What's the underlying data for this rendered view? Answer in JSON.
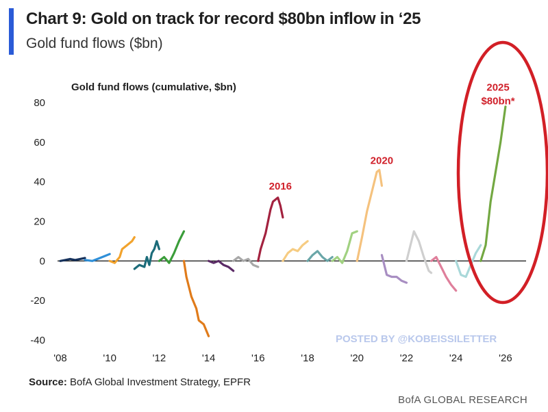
{
  "header": {
    "title": "Chart 9: Gold on track for record $80bn inflow in ‘25",
    "subtitle": "Gold fund flows ($bn)"
  },
  "footer": {
    "source_label": "Source:",
    "source_text": "BofA Global Investment Strategy, EPFR",
    "brand": "BofA GLOBAL RESEARCH"
  },
  "watermark": "POSTED BY @KOBEISSILETTER",
  "colors": {
    "accent": "#2a5bd7",
    "annotation": "#d0202a",
    "highlight_ellipse": "#d21f26"
  },
  "chart_data": {
    "type": "line",
    "title": "Gold fund flows (cumulative, $bn)",
    "xlabel": "",
    "ylabel": "",
    "xlim": [
      2008,
      2027
    ],
    "ylim": [
      -40,
      80
    ],
    "x_ticks": [
      "'08",
      "'10",
      "'12",
      "'14",
      "'16",
      "'18",
      "'20",
      "'22",
      "'24",
      "'26"
    ],
    "y_ticks": [
      80,
      60,
      40,
      20,
      0,
      -20,
      -40
    ],
    "grid": false,
    "legend": "none",
    "annotations": [
      {
        "lines": [
          "2016"
        ],
        "x": 2016.9,
        "y": 36
      },
      {
        "lines": [
          "2020"
        ],
        "x": 2021.0,
        "y": 49
      },
      {
        "lines": [
          "2025",
          "$80bn*"
        ],
        "x": 2025.7,
        "y": 86
      }
    ],
    "highlight": {
      "shape": "ellipse",
      "around": "2025",
      "color": "#d21f26"
    },
    "series": [
      {
        "year": 2008,
        "color": "#16325c",
        "x": [
          2008.0,
          2008.2,
          2008.4,
          2008.6,
          2008.8,
          2009.0
        ],
        "y": [
          0,
          0.5,
          1,
          0.5,
          1,
          1.5
        ]
      },
      {
        "year": 2009,
        "color": "#2f8fd8",
        "x": [
          2009.0,
          2009.3,
          2009.6,
          2009.8,
          2010.0
        ],
        "y": [
          0.5,
          0,
          1.5,
          2.5,
          3.5
        ]
      },
      {
        "year": 2010,
        "color": "#f2a32d",
        "x": [
          2010.0,
          2010.2,
          2010.4,
          2010.5,
          2010.7,
          2010.9,
          2011.0
        ],
        "y": [
          0,
          -1,
          2,
          6,
          8,
          10,
          12
        ]
      },
      {
        "year": 2011,
        "color": "#1c6c7a",
        "x": [
          2011.0,
          2011.2,
          2011.4,
          2011.5,
          2011.6,
          2011.7,
          2011.8,
          2011.9,
          2012.0
        ],
        "y": [
          -4,
          -2,
          -3,
          2,
          -2,
          4,
          6,
          10,
          6
        ]
      },
      {
        "year": 2012,
        "color": "#3b9d3a",
        "x": [
          2012.0,
          2012.2,
          2012.4,
          2012.6,
          2012.8,
          2013.0
        ],
        "y": [
          0,
          2,
          -1,
          4,
          10,
          15
        ]
      },
      {
        "year": 2013,
        "color": "#e07b1a",
        "x": [
          2013.0,
          2013.1,
          2013.3,
          2013.5,
          2013.6,
          2013.8,
          2014.0
        ],
        "y": [
          0,
          -8,
          -18,
          -24,
          -30,
          -32,
          -38
        ]
      },
      {
        "year": 2014,
        "color": "#5b2b66",
        "x": [
          2014.0,
          2014.2,
          2014.4,
          2014.6,
          2014.8,
          2015.0
        ],
        "y": [
          0,
          -1,
          0,
          -2,
          -3,
          -5
        ]
      },
      {
        "year": 2015,
        "color": "#a8a8a8",
        "x": [
          2015.0,
          2015.2,
          2015.4,
          2015.6,
          2015.8,
          2016.0
        ],
        "y": [
          0,
          2,
          0,
          1,
          -2,
          -3
        ]
      },
      {
        "year": 2016,
        "color": "#a3223f",
        "x": [
          2016.0,
          2016.1,
          2016.3,
          2016.5,
          2016.6,
          2016.8,
          2016.9,
          2017.0
        ],
        "y": [
          0,
          6,
          14,
          26,
          30,
          32,
          28,
          22
        ]
      },
      {
        "year": 2017,
        "color": "#f6cc82",
        "x": [
          2017.0,
          2017.2,
          2017.4,
          2017.6,
          2017.8,
          2018.0
        ],
        "y": [
          0,
          4,
          6,
          5,
          8,
          10
        ]
      },
      {
        "year": 2018,
        "color": "#6aa6a8",
        "x": [
          2018.0,
          2018.2,
          2018.4,
          2018.6,
          2018.8,
          2019.0
        ],
        "y": [
          0,
          3,
          5,
          2,
          0,
          2
        ]
      },
      {
        "year": 2019,
        "color": "#a1d181",
        "x": [
          2019.0,
          2019.2,
          2019.4,
          2019.6,
          2019.8,
          2020.0
        ],
        "y": [
          0,
          2,
          -1,
          5,
          14,
          15
        ]
      },
      {
        "year": 2020,
        "color": "#f5c27e",
        "x": [
          2020.0,
          2020.2,
          2020.4,
          2020.6,
          2020.8,
          2020.9,
          2021.0
        ],
        "y": [
          0,
          12,
          25,
          35,
          45,
          46,
          38
        ]
      },
      {
        "year": 2021,
        "color": "#a88ec2",
        "x": [
          2021.0,
          2021.2,
          2021.4,
          2021.6,
          2021.8,
          2022.0
        ],
        "y": [
          3,
          -7,
          -8,
          -8,
          -10,
          -11
        ]
      },
      {
        "year": 2022,
        "color": "#cfcfcf",
        "x": [
          2022.0,
          2022.2,
          2022.3,
          2022.5,
          2022.7,
          2022.9,
          2023.0
        ],
        "y": [
          0,
          10,
          15,
          10,
          2,
          -5,
          -6
        ]
      },
      {
        "year": 2023,
        "color": "#df7f9b",
        "x": [
          2023.0,
          2023.2,
          2023.4,
          2023.6,
          2023.8,
          2024.0
        ],
        "y": [
          0,
          2,
          -3,
          -8,
          -12,
          -15
        ]
      },
      {
        "year": 2024,
        "color": "#a9d8d9",
        "x": [
          2024.0,
          2024.2,
          2024.4,
          2024.6,
          2024.8,
          2025.0
        ],
        "y": [
          0,
          -7,
          -8,
          -2,
          4,
          8
        ]
      },
      {
        "year": 2025,
        "color": "#73a842",
        "x": [
          2025.0,
          2025.2,
          2025.4,
          2025.6,
          2025.8,
          2026.0
        ],
        "y": [
          0,
          8,
          30,
          45,
          60,
          78
        ]
      }
    ]
  }
}
